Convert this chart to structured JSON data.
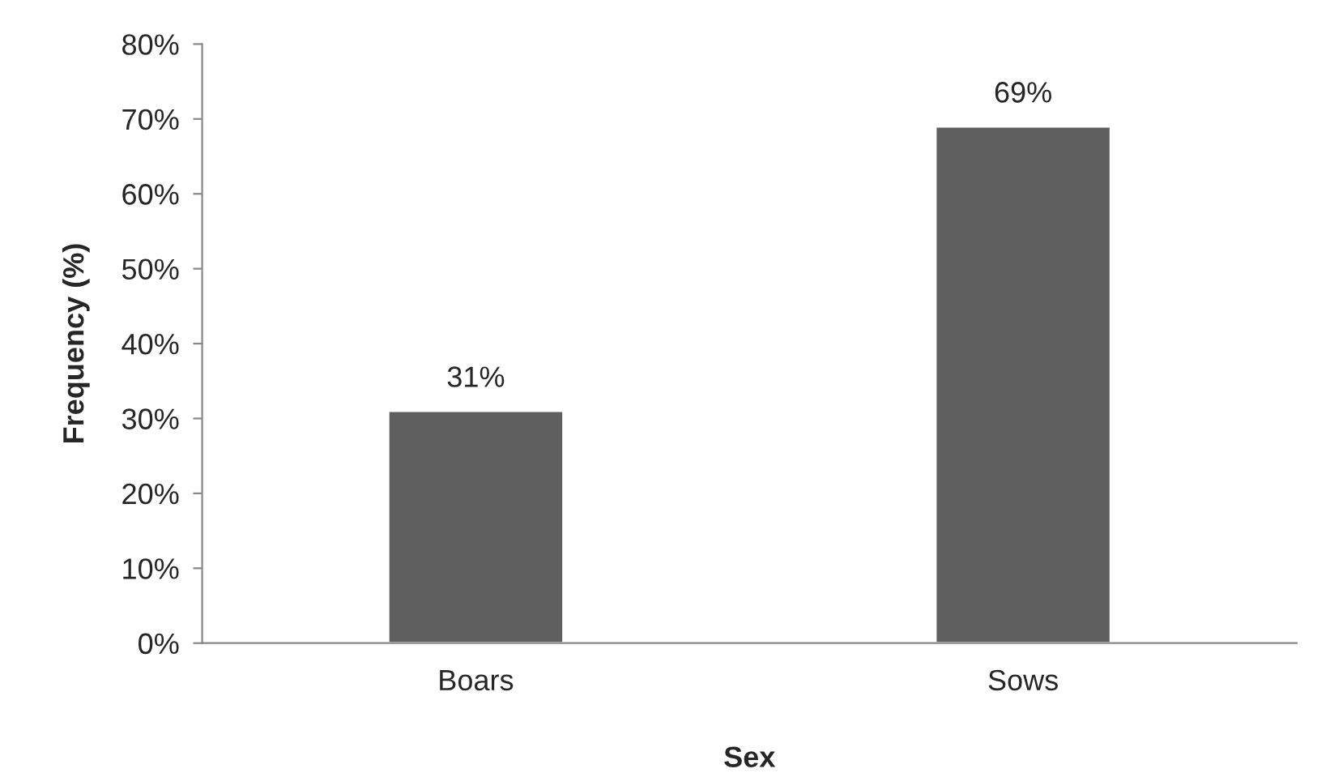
{
  "chart_data": {
    "type": "bar",
    "xlabel": "Sex",
    "ylabel": "Frequency (%)",
    "categories": [
      "Boars",
      "Sows"
    ],
    "values": [
      31,
      69
    ],
    "color": "#5f5f5f",
    "value_labels": [
      "31%",
      "69%"
    ],
    "ylim": [
      0,
      80
    ],
    "yticks": [
      {
        "value": 0,
        "label": "0%"
      },
      {
        "value": 10,
        "label": "10%"
      },
      {
        "value": 20,
        "label": "20%"
      },
      {
        "value": 30,
        "label": "30%"
      },
      {
        "value": 40,
        "label": "40%"
      },
      {
        "value": 50,
        "label": "50%"
      },
      {
        "value": 60,
        "label": "60%"
      },
      {
        "value": 70,
        "label": "70%"
      },
      {
        "value": 80,
        "label": "80%"
      }
    ],
    "grid": false,
    "legend": false
  }
}
